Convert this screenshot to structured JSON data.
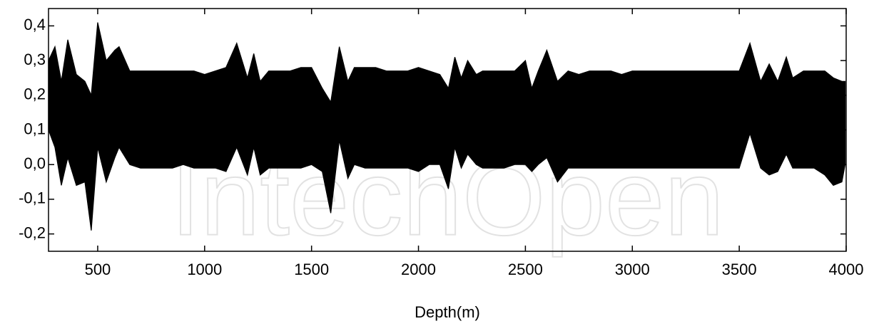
{
  "chart_data": {
    "type": "range_area",
    "x_label": "Depth(m)",
    "watermark": "IntechOpen",
    "color": "#000000",
    "xlim": [
      270,
      4000
    ],
    "ylim": [
      -0.25,
      0.45
    ],
    "xticks": [
      500,
      1000,
      1500,
      2000,
      2500,
      3000,
      3500,
      4000
    ],
    "yticks": [
      {
        "value": -0.2,
        "label": "-0,2"
      },
      {
        "value": -0.1,
        "label": "-0,1"
      },
      {
        "value": 0.0,
        "label": "0,0"
      },
      {
        "value": 0.1,
        "label": "0,1"
      },
      {
        "value": 0.2,
        "label": "0,2"
      },
      {
        "value": 0.3,
        "label": "0,3"
      },
      {
        "value": 0.4,
        "label": "0,4"
      }
    ],
    "x": [
      270,
      300,
      330,
      360,
      400,
      440,
      470,
      500,
      540,
      580,
      600,
      650,
      700,
      750,
      800,
      850,
      900,
      950,
      1000,
      1050,
      1100,
      1150,
      1200,
      1230,
      1260,
      1300,
      1350,
      1400,
      1450,
      1500,
      1550,
      1590,
      1630,
      1670,
      1700,
      1750,
      1800,
      1850,
      1900,
      1950,
      2000,
      2050,
      2100,
      2140,
      2170,
      2200,
      2230,
      2270,
      2300,
      2350,
      2400,
      2450,
      2500,
      2530,
      2560,
      2600,
      2650,
      2700,
      2750,
      2800,
      2850,
      2900,
      2950,
      3000,
      3050,
      3100,
      3150,
      3200,
      3250,
      3300,
      3350,
      3400,
      3450,
      3500,
      3550,
      3600,
      3640,
      3680,
      3720,
      3750,
      3800,
      3850,
      3900,
      3940,
      3980,
      3995
    ],
    "upper": [
      0.3,
      0.34,
      0.24,
      0.36,
      0.26,
      0.24,
      0.2,
      0.41,
      0.3,
      0.33,
      0.34,
      0.27,
      0.27,
      0.27,
      0.27,
      0.27,
      0.27,
      0.27,
      0.26,
      0.27,
      0.28,
      0.35,
      0.25,
      0.32,
      0.24,
      0.27,
      0.27,
      0.27,
      0.28,
      0.28,
      0.22,
      0.18,
      0.34,
      0.24,
      0.28,
      0.28,
      0.28,
      0.27,
      0.27,
      0.27,
      0.28,
      0.27,
      0.26,
      0.22,
      0.31,
      0.25,
      0.3,
      0.26,
      0.27,
      0.27,
      0.27,
      0.27,
      0.3,
      0.22,
      0.27,
      0.33,
      0.24,
      0.27,
      0.26,
      0.27,
      0.27,
      0.27,
      0.26,
      0.27,
      0.27,
      0.27,
      0.27,
      0.27,
      0.27,
      0.27,
      0.27,
      0.27,
      0.27,
      0.27,
      0.35,
      0.24,
      0.29,
      0.24,
      0.31,
      0.25,
      0.27,
      0.27,
      0.27,
      0.25,
      0.24,
      0.24
    ],
    "lower": [
      0.1,
      0.05,
      -0.06,
      0.02,
      -0.06,
      -0.05,
      -0.19,
      0.05,
      -0.05,
      0.02,
      0.05,
      0.0,
      -0.01,
      -0.01,
      -0.01,
      -0.01,
      0.0,
      -0.01,
      -0.01,
      -0.01,
      -0.02,
      0.05,
      -0.03,
      0.05,
      -0.03,
      -0.01,
      -0.01,
      -0.01,
      -0.01,
      0.0,
      -0.02,
      -0.14,
      0.07,
      -0.04,
      0.0,
      -0.01,
      -0.01,
      -0.01,
      -0.01,
      -0.01,
      -0.02,
      0.0,
      0.0,
      -0.07,
      0.05,
      -0.01,
      0.03,
      0.0,
      -0.01,
      -0.01,
      -0.01,
      0.0,
      0.0,
      -0.02,
      0.0,
      0.02,
      -0.05,
      -0.01,
      -0.01,
      -0.01,
      -0.01,
      -0.01,
      -0.01,
      -0.01,
      -0.01,
      -0.01,
      -0.01,
      -0.01,
      -0.01,
      -0.01,
      -0.01,
      -0.01,
      -0.01,
      -0.01,
      0.09,
      -0.01,
      -0.03,
      -0.02,
      0.03,
      -0.01,
      -0.01,
      -0.01,
      -0.03,
      -0.06,
      -0.05,
      0.0
    ]
  }
}
